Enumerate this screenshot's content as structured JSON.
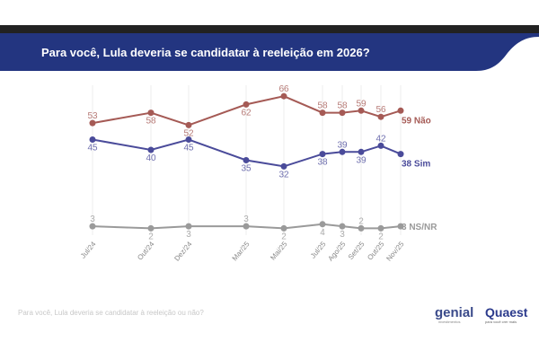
{
  "header": {
    "title": "Para você, Lula deveria se candidatar à reeleição em 2026?"
  },
  "footer": {
    "question": "Para você, Lula deveria se candidatar à reeleição ou não?"
  },
  "logos": {
    "genial": "genial",
    "genial_sub": "investimentos",
    "quaest": "Quaest",
    "quaest_sub": "para você crer mais"
  },
  "colors": {
    "banner": "#233580",
    "nao": "#a55a55",
    "sim": "#4a4b9a",
    "nsnr": "#9a9a9a"
  },
  "chart_data": {
    "type": "line",
    "categories": [
      "Jul/24",
      "Out/24",
      "Dez/24",
      "Mar/25",
      "Mai/25",
      "Jul/25",
      "Ago/25",
      "Set/25",
      "Out/25",
      "Nov/25"
    ],
    "series": [
      {
        "name": "Não",
        "end_label": "59 Não",
        "values": [
          53,
          58,
          52,
          62,
          66,
          58,
          58,
          59,
          56,
          59
        ],
        "label_pos": [
          "a",
          "b",
          "b",
          "b",
          "a",
          "a",
          "a",
          "a",
          "a"
        ]
      },
      {
        "name": "Sim",
        "end_label": "38 Sim",
        "values": [
          45,
          40,
          45,
          35,
          32,
          38,
          39,
          39,
          42,
          38
        ],
        "label_pos": [
          "b",
          "b",
          "b",
          "b",
          "b",
          "b",
          "a",
          "b",
          "a"
        ]
      },
      {
        "name": "NS/NR",
        "end_label": "3 NS/NR",
        "values": [
          3,
          2,
          3,
          3,
          2,
          4,
          3,
          2,
          2,
          3
        ],
        "label_pos": [
          "a",
          "b",
          "b",
          "a",
          "b",
          "b",
          "b",
          "a",
          "b"
        ]
      }
    ],
    "grid": "vertical",
    "legend": "end-labels"
  }
}
